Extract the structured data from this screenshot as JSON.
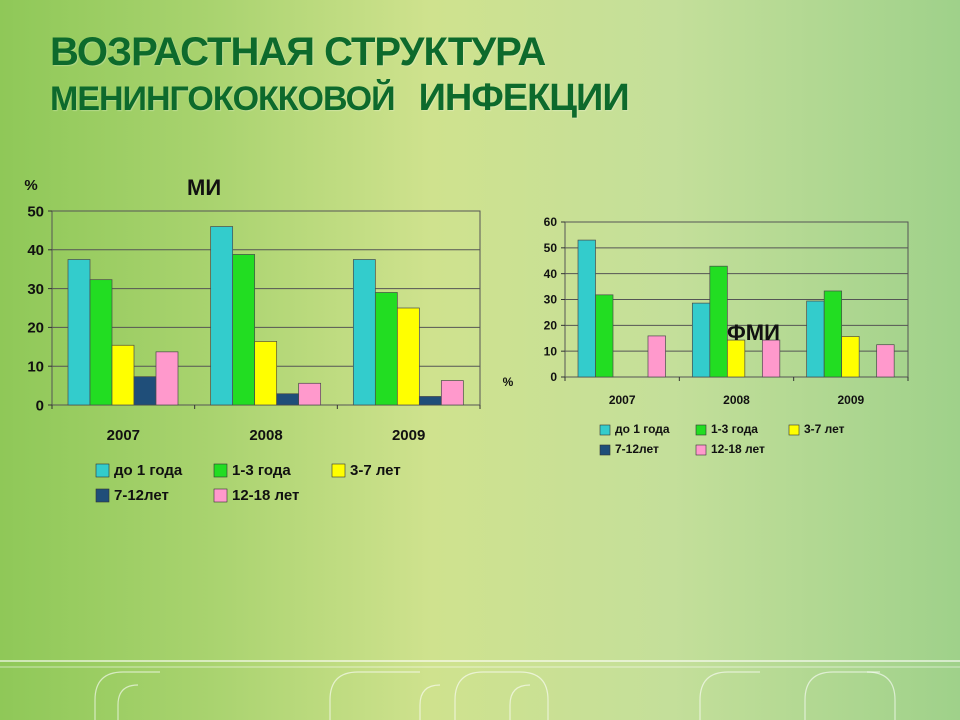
{
  "slide": {
    "title_line1": "ВОЗРАСТНАЯ СТРУКТУРА",
    "title_line2_a": "МЕНИНГОКОККОВОЙ",
    "title_line2_b": "ИНФЕКЦИИ"
  },
  "colors": {
    "title": "#0d6a2c",
    "series": [
      "#33cccc",
      "#22dd22",
      "#ffff00",
      "#1f4e79",
      "#ff99cc"
    ]
  },
  "chart_data": [
    {
      "type": "bar",
      "title": "МИ",
      "ylabel": "%",
      "ylim": [
        0,
        50
      ],
      "yticks": [
        0,
        10,
        20,
        30,
        40,
        50
      ],
      "categories": [
        "2007",
        "2008",
        "2009"
      ],
      "grid": true,
      "legend": "bottom",
      "series": [
        {
          "name": "до 1 года",
          "values": [
            37.5,
            46,
            37.5
          ]
        },
        {
          "name": "1-3 года",
          "values": [
            32.3,
            38.8,
            29
          ]
        },
        {
          "name": "3-7 лет",
          "values": [
            15.4,
            16.4,
            25
          ]
        },
        {
          "name": "7-12лет",
          "values": [
            7.3,
            2.9,
            2.2
          ]
        },
        {
          "name": "12-18 лет",
          "values": [
            13.7,
            5.6,
            6.3
          ]
        }
      ]
    },
    {
      "type": "bar",
      "title": "ФМИ",
      "ylabel": "%",
      "ylim": [
        0,
        60
      ],
      "yticks": [
        0,
        10,
        20,
        30,
        40,
        50,
        60
      ],
      "categories": [
        "2007",
        "2008",
        "2009"
      ],
      "grid": true,
      "legend": "bottom",
      "series": [
        {
          "name": "до 1 года",
          "values": [
            53,
            28.6,
            29.4
          ]
        },
        {
          "name": "1-3 года",
          "values": [
            31.8,
            42.9,
            33.3
          ]
        },
        {
          "name": "3-7 лет",
          "values": [
            0,
            14.3,
            15.7
          ]
        },
        {
          "name": "7-12лет",
          "values": [
            0,
            0,
            0
          ]
        },
        {
          "name": "12-18 лет",
          "values": [
            15.9,
            14.3,
            12.5
          ]
        }
      ]
    }
  ]
}
